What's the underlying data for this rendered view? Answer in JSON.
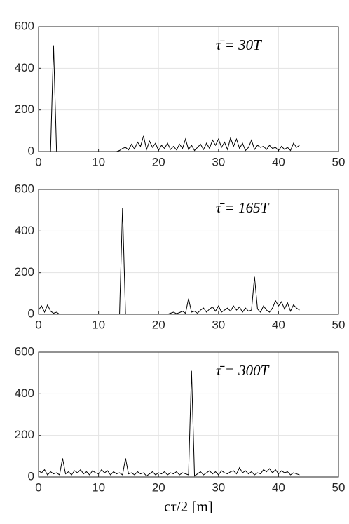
{
  "chart_data": [
    {
      "type": "line",
      "annotation": "τ̄ = 30T",
      "color": "#000000",
      "grid": true,
      "xlim": [
        0,
        50
      ],
      "xticks": [
        0,
        10,
        20,
        30,
        40,
        50
      ],
      "ylim": [
        0,
        600
      ],
      "yticks": [
        0,
        200,
        400,
        600
      ],
      "x": [
        0,
        0.5,
        1,
        1.5,
        2,
        2.5,
        3,
        3.5,
        4,
        4.5,
        5,
        5.5,
        6,
        6.5,
        7,
        7.5,
        8,
        8.5,
        9,
        9.5,
        10,
        10.5,
        11,
        11.5,
        12,
        12.5,
        13,
        13.5,
        14,
        14.5,
        15,
        15.5,
        16,
        16.5,
        17,
        17.5,
        18,
        18.5,
        19,
        19.5,
        20,
        20.5,
        21,
        21.5,
        22,
        22.5,
        23,
        23.5,
        24,
        24.5,
        25,
        25.5,
        26,
        26.5,
        27,
        27.5,
        28,
        28.5,
        29,
        29.5,
        30,
        30.5,
        31,
        31.5,
        32,
        32.5,
        33,
        33.5,
        34,
        34.5,
        35,
        35.5,
        36,
        36.5,
        37,
        37.5,
        38,
        38.5,
        39,
        39.5,
        40,
        40.5,
        41,
        41.5,
        42,
        42.5,
        43,
        43.5
      ],
      "values": [
        0,
        0,
        0,
        0,
        0,
        510,
        0,
        0,
        0,
        0,
        0,
        0,
        0,
        0,
        0,
        0,
        0,
        0,
        0,
        0,
        0,
        0,
        0,
        0,
        0,
        0,
        0,
        5,
        15,
        20,
        8,
        35,
        12,
        45,
        25,
        75,
        10,
        50,
        20,
        40,
        5,
        30,
        15,
        40,
        10,
        25,
        8,
        35,
        15,
        60,
        10,
        30,
        5,
        20,
        35,
        10,
        40,
        15,
        55,
        30,
        60,
        20,
        45,
        10,
        65,
        25,
        60,
        15,
        40,
        5,
        20,
        55,
        10,
        30,
        20,
        25,
        10,
        30,
        15,
        20,
        5,
        25,
        10,
        20,
        5,
        40,
        20,
        30
      ]
    },
    {
      "type": "line",
      "annotation": "τ̄ = 165T",
      "color": "#000000",
      "grid": true,
      "xlim": [
        0,
        50
      ],
      "xticks": [
        0,
        10,
        20,
        30,
        40,
        50
      ],
      "ylim": [
        0,
        600
      ],
      "yticks": [
        0,
        200,
        400,
        600
      ],
      "x": [
        0,
        0.5,
        1,
        1.5,
        2,
        2.5,
        3,
        3.5,
        4,
        4.5,
        5,
        5.5,
        6,
        6.5,
        7,
        7.5,
        8,
        8.5,
        9,
        9.5,
        10,
        10.5,
        11,
        11.5,
        12,
        12.5,
        13,
        13.5,
        14,
        14.5,
        15,
        15.5,
        16,
        16.5,
        17,
        17.5,
        18,
        18.5,
        19,
        19.5,
        20,
        20.5,
        21,
        21.5,
        22,
        22.5,
        23,
        23.5,
        24,
        24.5,
        25,
        25.5,
        26,
        26.5,
        27,
        27.5,
        28,
        28.5,
        29,
        29.5,
        30,
        30.5,
        31,
        31.5,
        32,
        32.5,
        33,
        33.5,
        34,
        34.5,
        35,
        35.5,
        36,
        36.5,
        37,
        37.5,
        38,
        38.5,
        39,
        39.5,
        40,
        40.5,
        41,
        41.5,
        42,
        42.5,
        43,
        43.5
      ],
      "values": [
        20,
        40,
        10,
        45,
        15,
        5,
        10,
        0,
        0,
        0,
        0,
        0,
        0,
        0,
        0,
        0,
        0,
        0,
        0,
        0,
        0,
        0,
        0,
        0,
        0,
        0,
        0,
        0,
        510,
        0,
        0,
        0,
        0,
        0,
        0,
        0,
        0,
        0,
        0,
        0,
        0,
        0,
        0,
        0,
        5,
        10,
        3,
        8,
        15,
        5,
        75,
        10,
        15,
        5,
        20,
        30,
        10,
        25,
        35,
        15,
        40,
        10,
        20,
        30,
        15,
        40,
        20,
        35,
        10,
        30,
        15,
        20,
        180,
        25,
        10,
        40,
        20,
        10,
        30,
        65,
        40,
        60,
        25,
        55,
        15,
        45,
        30,
        20
      ]
    },
    {
      "type": "line",
      "annotation": "τ̄ = 300T",
      "color": "#000000",
      "grid": true,
      "xlabel": "cτ/2 [m]",
      "xlim": [
        0,
        50
      ],
      "xticks": [
        0,
        10,
        20,
        30,
        40,
        50
      ],
      "ylim": [
        0,
        600
      ],
      "yticks": [
        0,
        200,
        400,
        600
      ],
      "x": [
        0,
        0.5,
        1,
        1.5,
        2,
        2.5,
        3,
        3.5,
        4,
        4.5,
        5,
        5.5,
        6,
        6.5,
        7,
        7.5,
        8,
        8.5,
        9,
        9.5,
        10,
        10.5,
        11,
        11.5,
        12,
        12.5,
        13,
        13.5,
        14,
        14.5,
        15,
        15.5,
        16,
        16.5,
        17,
        17.5,
        18,
        18.5,
        19,
        19.5,
        20,
        20.5,
        21,
        21.5,
        22,
        22.5,
        23,
        23.5,
        24,
        24.5,
        25,
        25.5,
        26,
        26.5,
        27,
        27.5,
        28,
        28.5,
        29,
        29.5,
        30,
        30.5,
        31,
        31.5,
        32,
        32.5,
        33,
        33.5,
        34,
        34.5,
        35,
        35.5,
        36,
        36.5,
        37,
        37.5,
        38,
        38.5,
        39,
        39.5,
        40,
        40.5,
        41,
        41.5,
        42,
        42.5,
        43,
        43.5
      ],
      "values": [
        30,
        20,
        35,
        10,
        25,
        15,
        20,
        10,
        90,
        15,
        25,
        10,
        30,
        20,
        35,
        15,
        25,
        10,
        30,
        20,
        15,
        35,
        20,
        30,
        10,
        25,
        15,
        20,
        10,
        90,
        15,
        20,
        10,
        25,
        15,
        20,
        5,
        15,
        25,
        10,
        20,
        15,
        25,
        10,
        20,
        15,
        25,
        10,
        20,
        15,
        10,
        510,
        5,
        15,
        25,
        10,
        20,
        30,
        15,
        25,
        10,
        30,
        20,
        15,
        25,
        30,
        15,
        45,
        20,
        30,
        15,
        25,
        10,
        20,
        15,
        35,
        25,
        40,
        20,
        35,
        15,
        30,
        20,
        25,
        10,
        20,
        15,
        10
      ]
    }
  ]
}
